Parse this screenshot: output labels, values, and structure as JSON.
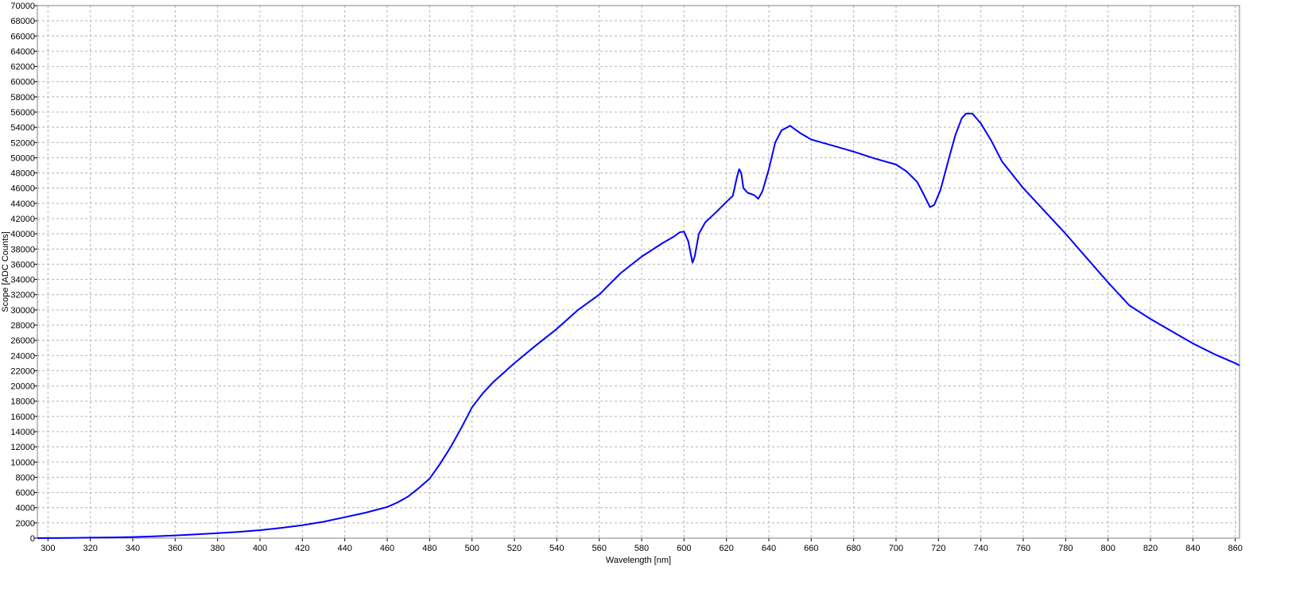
{
  "chart_data": {
    "type": "line",
    "xlabel": "Wavelength [nm]",
    "ylabel": "Scope [ADC Counts]",
    "xlim": [
      295,
      862
    ],
    "ylim": [
      0,
      70000
    ],
    "x_ticks": [
      300,
      320,
      340,
      360,
      380,
      400,
      420,
      440,
      460,
      480,
      500,
      520,
      540,
      560,
      580,
      600,
      620,
      640,
      660,
      680,
      700,
      720,
      740,
      760,
      780,
      800,
      820,
      840,
      860
    ],
    "y_ticks": [
      0,
      2000,
      4000,
      6000,
      8000,
      10000,
      12000,
      14000,
      16000,
      18000,
      20000,
      22000,
      24000,
      26000,
      28000,
      30000,
      32000,
      34000,
      36000,
      38000,
      40000,
      42000,
      44000,
      46000,
      48000,
      50000,
      52000,
      54000,
      56000,
      58000,
      60000,
      62000,
      64000,
      66000,
      68000,
      70000
    ],
    "grid": true,
    "legend": "none",
    "series": [
      {
        "color": "#0000ff",
        "points": [
          [
            295,
            0
          ],
          [
            310,
            30
          ],
          [
            320,
            60
          ],
          [
            330,
            90
          ],
          [
            340,
            150
          ],
          [
            350,
            230
          ],
          [
            360,
            350
          ],
          [
            370,
            500
          ],
          [
            380,
            650
          ],
          [
            390,
            830
          ],
          [
            400,
            1050
          ],
          [
            410,
            1350
          ],
          [
            420,
            1700
          ],
          [
            430,
            2150
          ],
          [
            440,
            2750
          ],
          [
            450,
            3350
          ],
          [
            460,
            4100
          ],
          [
            465,
            4700
          ],
          [
            470,
            5500
          ],
          [
            475,
            6600
          ],
          [
            480,
            7800
          ],
          [
            485,
            9800
          ],
          [
            490,
            12000
          ],
          [
            495,
            14500
          ],
          [
            500,
            17200
          ],
          [
            505,
            19000
          ],
          [
            510,
            20500
          ],
          [
            520,
            23000
          ],
          [
            530,
            25300
          ],
          [
            540,
            27500
          ],
          [
            550,
            30000
          ],
          [
            555,
            31000
          ],
          [
            560,
            32000
          ],
          [
            570,
            34800
          ],
          [
            580,
            37000
          ],
          [
            590,
            38800
          ],
          [
            595,
            39600
          ],
          [
            598,
            40200
          ],
          [
            600,
            40300
          ],
          [
            602,
            39000
          ],
          [
            604,
            36200
          ],
          [
            605,
            37000
          ],
          [
            607,
            40000
          ],
          [
            610,
            41500
          ],
          [
            615,
            42800
          ],
          [
            620,
            44200
          ],
          [
            623,
            45000
          ],
          [
            625,
            47500
          ],
          [
            626,
            48500
          ],
          [
            627,
            48000
          ],
          [
            628,
            46000
          ],
          [
            630,
            45400
          ],
          [
            633,
            45100
          ],
          [
            635,
            44600
          ],
          [
            637,
            45600
          ],
          [
            640,
            48500
          ],
          [
            643,
            52000
          ],
          [
            646,
            53600
          ],
          [
            650,
            54200
          ],
          [
            655,
            53200
          ],
          [
            660,
            52400
          ],
          [
            665,
            52000
          ],
          [
            670,
            51600
          ],
          [
            680,
            50800
          ],
          [
            690,
            49900
          ],
          [
            700,
            49100
          ],
          [
            705,
            48200
          ],
          [
            710,
            46800
          ],
          [
            713,
            45200
          ],
          [
            716,
            43500
          ],
          [
            718,
            43800
          ],
          [
            721,
            45800
          ],
          [
            725,
            50000
          ],
          [
            728,
            53000
          ],
          [
            731,
            55200
          ],
          [
            733,
            55800
          ],
          [
            736,
            55800
          ],
          [
            740,
            54500
          ],
          [
            745,
            52200
          ],
          [
            750,
            49500
          ],
          [
            760,
            46000
          ],
          [
            770,
            43000
          ],
          [
            780,
            40000
          ],
          [
            790,
            36800
          ],
          [
            800,
            33600
          ],
          [
            810,
            30600
          ],
          [
            820,
            28800
          ],
          [
            830,
            27200
          ],
          [
            840,
            25600
          ],
          [
            850,
            24200
          ],
          [
            860,
            23000
          ],
          [
            862,
            22700
          ]
        ]
      }
    ]
  }
}
